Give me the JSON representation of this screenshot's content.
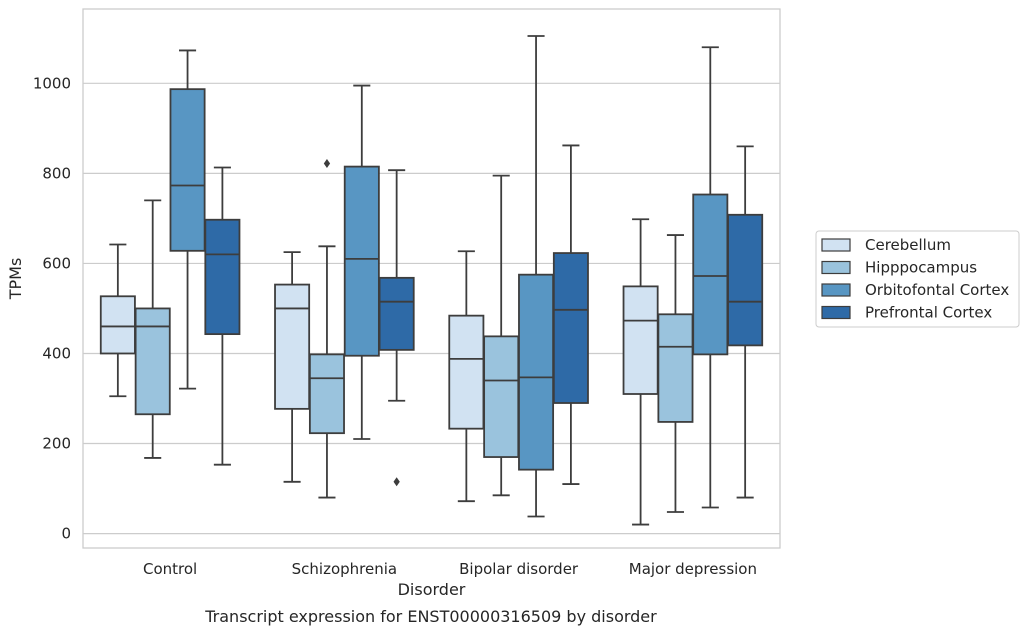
{
  "caption": "Transcript expression for ENST00000316509 by disorder",
  "chart_data": {
    "type": "box",
    "xlabel": "Disorder",
    "ylabel": "TPMs",
    "categories": [
      "Control",
      "Schizophrenia",
      "Bipolar disorder",
      "Major depression"
    ],
    "ylim": [
      -32,
      1165
    ],
    "yticks": [
      0,
      200,
      400,
      600,
      800,
      1000
    ],
    "grid": "horizontal",
    "legend_position": "right",
    "series": [
      {
        "name": "Cerebellum",
        "color": "#d1e2f2",
        "boxes": [
          {
            "whisker_low": 305,
            "q1": 400,
            "median": 460,
            "q3": 527,
            "whisker_high": 642,
            "outliers": []
          },
          {
            "whisker_low": 115,
            "q1": 277,
            "median": 500,
            "q3": 553,
            "whisker_high": 625,
            "outliers": []
          },
          {
            "whisker_low": 72,
            "q1": 233,
            "median": 388,
            "q3": 484,
            "whisker_high": 627,
            "outliers": []
          },
          {
            "whisker_low": 20,
            "q1": 310,
            "median": 473,
            "q3": 549,
            "whisker_high": 698,
            "outliers": []
          }
        ]
      },
      {
        "name": "Hipppocampus",
        "color": "#9ac3dd",
        "boxes": [
          {
            "whisker_low": 168,
            "q1": 265,
            "median": 460,
            "q3": 500,
            "whisker_high": 740,
            "outliers": []
          },
          {
            "whisker_low": 80,
            "q1": 223,
            "median": 345,
            "q3": 398,
            "whisker_high": 638,
            "outliers": [
              822
            ]
          },
          {
            "whisker_low": 85,
            "q1": 170,
            "median": 340,
            "q3": 438,
            "whisker_high": 795,
            "outliers": []
          },
          {
            "whisker_low": 48,
            "q1": 248,
            "median": 415,
            "q3": 487,
            "whisker_high": 663,
            "outliers": []
          }
        ]
      },
      {
        "name": "Orbitofontal Cortex",
        "color": "#5896c3",
        "boxes": [
          {
            "whisker_low": 322,
            "q1": 628,
            "median": 773,
            "q3": 987,
            "whisker_high": 1073,
            "outliers": []
          },
          {
            "whisker_low": 210,
            "q1": 395,
            "median": 610,
            "q3": 815,
            "whisker_high": 995,
            "outliers": []
          },
          {
            "whisker_low": 38,
            "q1": 142,
            "median": 347,
            "q3": 575,
            "whisker_high": 1105,
            "outliers": []
          },
          {
            "whisker_low": 58,
            "q1": 398,
            "median": 572,
            "q3": 753,
            "whisker_high": 1080,
            "outliers": []
          }
        ]
      },
      {
        "name": "Prefrontal Cortex",
        "color": "#2e6aa7",
        "boxes": [
          {
            "whisker_low": 153,
            "q1": 443,
            "median": 620,
            "q3": 697,
            "whisker_high": 813,
            "outliers": []
          },
          {
            "whisker_low": 295,
            "q1": 408,
            "median": 515,
            "q3": 568,
            "whisker_high": 807,
            "outliers": [
              115
            ]
          },
          {
            "whisker_low": 110,
            "q1": 290,
            "median": 497,
            "q3": 623,
            "whisker_high": 862,
            "outliers": []
          },
          {
            "whisker_low": 80,
            "q1": 418,
            "median": 515,
            "q3": 708,
            "whisker_high": 860,
            "outliers": []
          }
        ]
      }
    ]
  }
}
